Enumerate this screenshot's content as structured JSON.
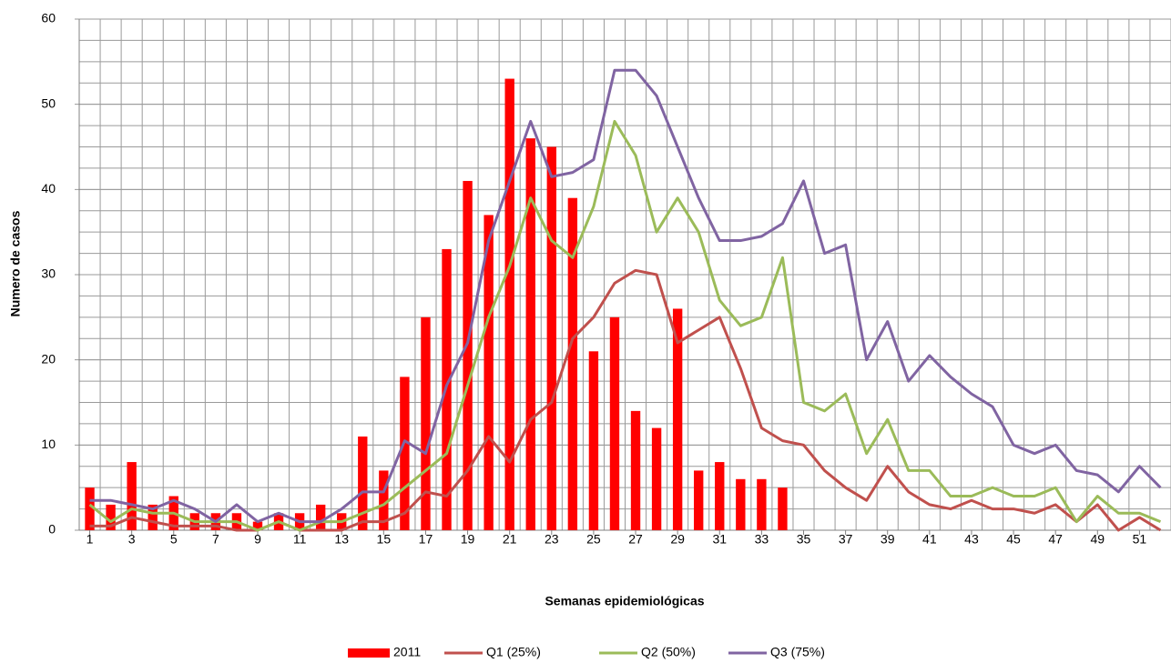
{
  "chart_data": {
    "type": "bar",
    "x": [
      1,
      2,
      3,
      4,
      5,
      6,
      7,
      8,
      9,
      10,
      11,
      12,
      13,
      14,
      15,
      16,
      17,
      18,
      19,
      20,
      21,
      22,
      23,
      24,
      25,
      26,
      27,
      28,
      29,
      30,
      31,
      32,
      33,
      34,
      35,
      36,
      37,
      38,
      39,
      40,
      41,
      42,
      43,
      44,
      45,
      46,
      47,
      48,
      49,
      50,
      51,
      52
    ],
    "xlim": [
      0.5,
      52.5
    ],
    "xticks": [
      1,
      3,
      5,
      7,
      9,
      11,
      13,
      15,
      17,
      19,
      21,
      23,
      25,
      27,
      29,
      31,
      33,
      35,
      37,
      39,
      41,
      43,
      45,
      47,
      49,
      51
    ],
    "ylim": [
      0,
      60
    ],
    "yticks": [
      0,
      10,
      20,
      30,
      40,
      50,
      60
    ],
    "y_minor_step": 2.5,
    "grid": true,
    "xlabel": "Semanas epidemiológicas",
    "ylabel": "Numero de casos",
    "legend": "bottom",
    "series": [
      {
        "name": "2011",
        "type": "bar",
        "color": "#ff0000",
        "values": [
          5,
          3,
          8,
          3,
          4,
          2,
          2,
          2,
          1,
          2,
          2,
          3,
          2,
          11,
          7,
          18,
          25,
          33,
          41,
          37,
          53,
          46,
          45,
          39,
          21,
          25,
          14,
          12,
          26,
          7,
          8,
          6,
          6,
          5,
          null,
          null,
          null,
          null,
          null,
          null,
          null,
          null,
          null,
          null,
          null,
          null,
          null,
          null,
          null,
          null,
          null,
          null
        ]
      },
      {
        "name": "Q1 (25%)",
        "type": "line",
        "color": "#c0504d",
        "values": [
          0.5,
          0.5,
          1.5,
          1,
          0.5,
          0.5,
          0.5,
          0,
          0,
          1,
          0,
          0,
          0,
          1,
          1,
          2,
          4.5,
          4,
          7,
          11,
          8,
          13,
          15,
          22.5,
          25,
          29,
          30.5,
          30,
          22,
          23.5,
          25,
          19,
          12,
          10.5,
          10,
          7,
          5,
          3.5,
          7.5,
          4.5,
          3,
          2.5,
          3.5,
          2.5,
          2.5,
          2,
          3,
          1,
          3,
          0,
          1.5,
          0
        ]
      },
      {
        "name": "Q2 (50%)",
        "type": "line",
        "color": "#9bbb59",
        "values": [
          3,
          1,
          2.5,
          2,
          2,
          1,
          1,
          1,
          0,
          1,
          0,
          1,
          1,
          2,
          3,
          5,
          7,
          9,
          17,
          25,
          31,
          39,
          34,
          32,
          38,
          48,
          44,
          35,
          39,
          35,
          27,
          24,
          25,
          32,
          15,
          14,
          16,
          9,
          13,
          7,
          7,
          4,
          4,
          5,
          4,
          4,
          5,
          1,
          4,
          2,
          2,
          1
        ]
      },
      {
        "name": "Q3 (75%)",
        "type": "line",
        "color": "#8064a2",
        "values": [
          3.5,
          3.5,
          3,
          2.5,
          3.5,
          2.5,
          1,
          3,
          1,
          2,
          1,
          1,
          2.5,
          4.5,
          4.5,
          10.5,
          9,
          17,
          22,
          34,
          41,
          48,
          41.5,
          42,
          43.5,
          54,
          54,
          51,
          45,
          39,
          34,
          34,
          34.5,
          36,
          41,
          32.5,
          33.5,
          20,
          24.5,
          17.5,
          20.5,
          18,
          16,
          14.5,
          10,
          9,
          10,
          7,
          6.5,
          4.5,
          7.5,
          5
        ]
      }
    ]
  }
}
